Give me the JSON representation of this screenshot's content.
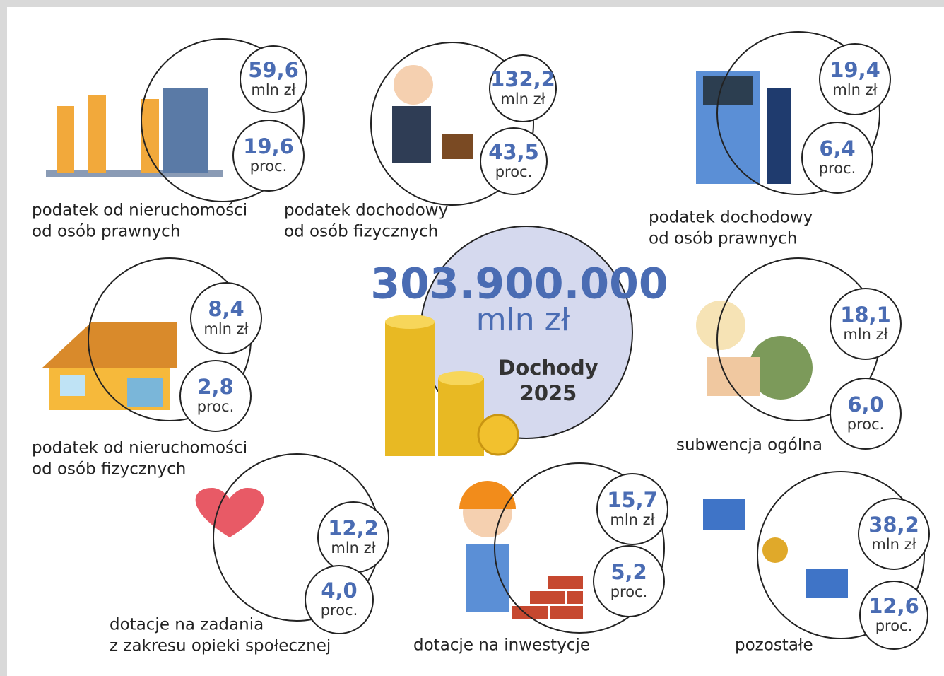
{
  "center": {
    "amount": "303.900.000",
    "unit": "mln zł",
    "label": "Dochody",
    "year": "2025"
  },
  "items": [
    {
      "label": [
        "podatek od nieruchomości",
        "od osób prawnych"
      ],
      "amount": "59,6",
      "amount_unit": "mln zł",
      "percent": "19,6",
      "percent_unit": "proc."
    },
    {
      "label": [
        "podatek dochodowy",
        "od osób fizycznych"
      ],
      "amount": "132,2",
      "amount_unit": "mln zł",
      "percent": "43,5",
      "percent_unit": "proc."
    },
    {
      "label": [
        "podatek dochodowy",
        "od osób prawnych"
      ],
      "amount": "19,4",
      "amount_unit": "mln zł",
      "percent": "6,4",
      "percent_unit": "proc."
    },
    {
      "label": [
        "podatek od nieruchomości",
        "od osób fizycznych"
      ],
      "amount": "8,4",
      "amount_unit": "mln zł",
      "percent": "2,8",
      "percent_unit": "proc."
    },
    {
      "label": [
        "subwencja ogólna"
      ],
      "amount": "18,1",
      "amount_unit": "mln zł",
      "percent": "6,0",
      "percent_unit": "proc."
    },
    {
      "label": [
        "dotacje na zadania",
        "z zakresu opieki społecznej"
      ],
      "amount": "12,2",
      "amount_unit": "mln zł",
      "percent": "4,0",
      "percent_unit": "proc."
    },
    {
      "label": [
        "dotacje na inwestycje"
      ],
      "amount": "15,7",
      "amount_unit": "mln zł",
      "percent": "5,2",
      "percent_unit": "proc."
    },
    {
      "label": [
        "pozostałe"
      ],
      "amount": "38,2",
      "amount_unit": "mln zł",
      "percent": "12,6",
      "percent_unit": "proc."
    }
  ]
}
